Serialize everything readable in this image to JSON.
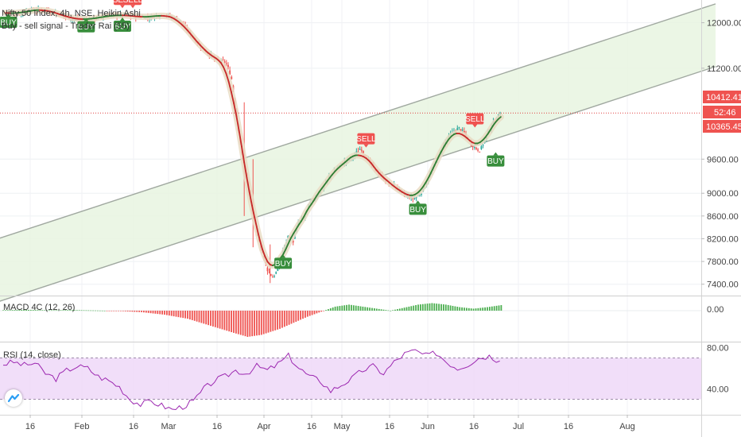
{
  "header": {
    "symbol_title": "Nifty 50 Index, 4h, NSE, Heikin Ashi",
    "indicator_title": "Buy - sell signal - Trader Rai (55)"
  },
  "panes": {
    "macd_label": "MACD 4C (12, 26)",
    "rsi_label": "RSI (14, close)"
  },
  "price_tags": {
    "close": "10412.41",
    "countdown": "52:46",
    "level": "10365.45"
  },
  "colors": {
    "up": "#26a69a",
    "down": "#ef5350",
    "channel_fill": "#e8f5e0",
    "rsi_fill": "#efd8f8",
    "rsi_line": "#9c27b0",
    "buy_sig": "#388e3c",
    "sell_sig": "#ef5350",
    "price_line": "#e04040"
  },
  "chart_data": {
    "type": "candlestick",
    "title": "Nifty 50 Index, 4h, NSE, Heikin Ashi",
    "x_ticks": [
      "16",
      "Feb",
      "16",
      "Mar",
      "16",
      "Apr",
      "16",
      "May",
      "16",
      "Jun",
      "16",
      "Jul",
      "16",
      "Aug"
    ],
    "y_ticks": [
      "12000.00",
      "11200.00",
      "10412.41",
      "9600.00",
      "9000.00",
      "8600.00",
      "8200.00",
      "7800.00",
      "7400.00"
    ],
    "ylim": [
      7200,
      12400
    ],
    "current_price": 10412.41,
    "price_close_series": [
      [
        0.5,
        12180
      ],
      [
        3,
        12150
      ],
      [
        5,
        12220
      ],
      [
        8,
        12230
      ],
      [
        10,
        12180
      ],
      [
        13,
        12080
      ],
      [
        16,
        12050
      ],
      [
        19,
        12100
      ],
      [
        22,
        12140
      ],
      [
        25,
        12120
      ],
      [
        28,
        12090
      ],
      [
        31,
        12150
      ],
      [
        34,
        12050
      ],
      [
        37,
        11700
      ],
      [
        39,
        11500
      ],
      [
        41,
        11350
      ],
      [
        43,
        11300
      ],
      [
        44,
        11050
      ],
      [
        45,
        10400
      ],
      [
        46,
        9700
      ],
      [
        47,
        9300
      ],
      [
        48,
        8700
      ],
      [
        49,
        8300
      ],
      [
        50,
        7950
      ],
      [
        51,
        7650
      ],
      [
        52,
        7520
      ],
      [
        53,
        7650
      ],
      [
        54,
        8000
      ],
      [
        55,
        8250
      ],
      [
        56,
        8150
      ],
      [
        57,
        8500
      ],
      [
        58,
        8550
      ],
      [
        59,
        8800
      ],
      [
        60,
        8900
      ],
      [
        61,
        9000
      ],
      [
        62,
        9150
      ],
      [
        63,
        9300
      ],
      [
        64,
        9400
      ],
      [
        65,
        9500
      ],
      [
        66,
        9550
      ],
      [
        67,
        9600
      ],
      [
        68,
        9700
      ],
      [
        69,
        9800
      ],
      [
        70,
        9650
      ],
      [
        71,
        9500
      ],
      [
        72,
        9400
      ],
      [
        73,
        9300
      ],
      [
        74,
        9200
      ],
      [
        75,
        9150
      ],
      [
        76,
        9100
      ],
      [
        77,
        9000
      ],
      [
        78,
        8950
      ],
      [
        79,
        8900
      ],
      [
        80,
        8950
      ],
      [
        81,
        9050
      ],
      [
        82,
        9250
      ],
      [
        83,
        9450
      ],
      [
        84,
        9650
      ],
      [
        85,
        9850
      ],
      [
        86,
        10000
      ],
      [
        87,
        10100
      ],
      [
        88,
        10150
      ],
      [
        89,
        10050
      ],
      [
        90,
        9900
      ],
      [
        91,
        9800
      ],
      [
        92,
        9750
      ],
      [
        93,
        9950
      ],
      [
        94,
        10150
      ],
      [
        95,
        10300
      ],
      [
        96,
        10412
      ]
    ],
    "channel": {
      "lower": [
        [
          0,
          7120
        ],
        [
          200,
          13100
        ]
      ],
      "upper": [
        [
          0,
          8230
        ],
        [
          200,
          14200
        ]
      ]
    },
    "signals": [
      {
        "label": "BUY",
        "x": 1,
        "price": 12190
      },
      {
        "label": "BUY",
        "x": 16,
        "price": 12110
      },
      {
        "label": "BUY",
        "x": 23,
        "price": 12120
      },
      {
        "label": "SELL",
        "x": 23,
        "price": 12200
      },
      {
        "label": "SELL",
        "x": 25,
        "price": 12200
      },
      {
        "label": "BUY",
        "x": 54,
        "price": 7950
      },
      {
        "label": "SELL",
        "x": 70,
        "price": 9750
      },
      {
        "label": "BUY",
        "x": 80,
        "price": 8900
      },
      {
        "label": "SELL",
        "x": 91,
        "price": 10100
      },
      {
        "label": "BUY",
        "x": 95,
        "price": 9750
      }
    ],
    "macd": {
      "ylabel": "MACD 4C (12, 26)",
      "y_ticks": [
        "0.00"
      ],
      "values": [
        [
          0,
          5
        ],
        [
          5,
          8
        ],
        [
          10,
          4
        ],
        [
          15,
          6
        ],
        [
          20,
          2
        ],
        [
          25,
          -3
        ],
        [
          30,
          -15
        ],
        [
          35,
          -40
        ],
        [
          40,
          -80
        ],
        [
          45,
          -150
        ],
        [
          50,
          -220
        ],
        [
          53,
          -260
        ],
        [
          56,
          -240
        ],
        [
          60,
          -180
        ],
        [
          63,
          -120
        ],
        [
          66,
          -60
        ],
        [
          69,
          -10
        ],
        [
          72,
          40
        ],
        [
          75,
          60
        ],
        [
          78,
          40
        ],
        [
          81,
          20
        ],
        [
          84,
          0
        ],
        [
          87,
          30
        ],
        [
          90,
          60
        ],
        [
          93,
          75
        ],
        [
          96,
          60
        ],
        [
          99,
          35
        ],
        [
          102,
          20
        ],
        [
          105,
          35
        ],
        [
          108,
          55
        ]
      ]
    },
    "rsi": {
      "ylabel": "RSI (14, close)",
      "y_ticks": [
        "80.00",
        "40.00"
      ],
      "band": [
        30,
        70
      ],
      "ylim": [
        15,
        85
      ],
      "values": [
        [
          0,
          64
        ],
        [
          3,
          66
        ],
        [
          6,
          63
        ],
        [
          9,
          65
        ],
        [
          12,
          55
        ],
        [
          15,
          50
        ],
        [
          18,
          58
        ],
        [
          21,
          62
        ],
        [
          24,
          60
        ],
        [
          27,
          52
        ],
        [
          30,
          48
        ],
        [
          33,
          42
        ],
        [
          36,
          30
        ],
        [
          39,
          25
        ],
        [
          42,
          28
        ],
        [
          45,
          24
        ],
        [
          48,
          20
        ],
        [
          51,
          23
        ],
        [
          54,
          28
        ],
        [
          57,
          40
        ],
        [
          60,
          48
        ],
        [
          63,
          52
        ],
        [
          66,
          58
        ],
        [
          69,
          55
        ],
        [
          72,
          62
        ],
        [
          75,
          58
        ],
        [
          78,
          64
        ],
        [
          81,
          72
        ],
        [
          84,
          60
        ],
        [
          87,
          52
        ],
        [
          90,
          48
        ],
        [
          93,
          38
        ],
        [
          96,
          44
        ],
        [
          99,
          50
        ],
        [
          102,
          58
        ],
        [
          105,
          62
        ],
        [
          108,
          55
        ],
        [
          111,
          66
        ],
        [
          114,
          74
        ],
        [
          117,
          77
        ],
        [
          120,
          72
        ],
        [
          123,
          75
        ],
        [
          126,
          66
        ],
        [
          129,
          60
        ],
        [
          132,
          64
        ],
        [
          135,
          70
        ],
        [
          138,
          72
        ],
        [
          141,
          67
        ]
      ]
    }
  }
}
